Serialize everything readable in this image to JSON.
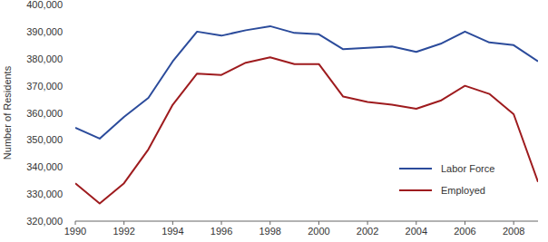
{
  "chart_data": {
    "type": "line",
    "y_label": "Number of Residents",
    "x": [
      1990,
      1991,
      1992,
      1993,
      1994,
      1995,
      1996,
      1997,
      1998,
      1999,
      2000,
      2001,
      2002,
      2003,
      2004,
      2005,
      2006,
      2007,
      2008,
      2009
    ],
    "series": [
      {
        "name": "Labor Force",
        "color": "#2b4b9b",
        "values": [
          354500,
          350500,
          358500,
          365500,
          379000,
          390000,
          388500,
          390500,
          392000,
          389500,
          389000,
          383500,
          384000,
          384500,
          382500,
          385500,
          390000,
          386000,
          385000,
          379000
        ]
      },
      {
        "name": "Employed",
        "color": "#9e1b1e",
        "values": [
          334000,
          326500,
          334000,
          346500,
          363000,
          374500,
          374000,
          378500,
          380500,
          378000,
          378000,
          366000,
          364000,
          363000,
          361500,
          364500,
          370000,
          367000,
          359500,
          334500
        ]
      }
    ],
    "xlim": [
      1990,
      2009
    ],
    "xticks": [
      1990,
      1992,
      1994,
      1996,
      1998,
      2000,
      2002,
      2004,
      2006,
      2008
    ],
    "ylim": [
      320000,
      400000
    ],
    "yticks": [
      {
        "value": 320000,
        "label": "320,000"
      },
      {
        "value": 330000,
        "label": "330,000"
      },
      {
        "value": 340000,
        "label": "340,000"
      },
      {
        "value": 350000,
        "label": "350,000"
      },
      {
        "value": 360000,
        "label": "360,000"
      },
      {
        "value": 370000,
        "label": "370,000"
      },
      {
        "value": 380000,
        "label": "380,000"
      },
      {
        "value": 390000,
        "label": "390,000"
      },
      {
        "value": 400000,
        "label": "400,000"
      }
    ],
    "grid": false,
    "legend": "lower right"
  }
}
